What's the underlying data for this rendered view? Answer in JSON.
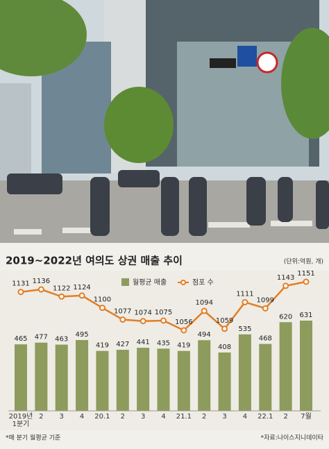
{
  "chart_data": {
    "type": "bar-line",
    "title": "2019~2022년 여의도 상권 매출 추이",
    "unit_note": "(단위:억원, 개)",
    "categories": [
      "2019년 1분기",
      "2",
      "3",
      "4",
      "20.1",
      "2",
      "3",
      "4",
      "21.1",
      "2",
      "3",
      "4",
      "22.1",
      "2",
      "7월"
    ],
    "series": [
      {
        "name": "월평균 매출",
        "color": "#8d9b5c",
        "kind": "bar",
        "values": [
          465,
          477,
          463,
          495,
          419,
          427,
          441,
          435,
          419,
          494,
          408,
          535,
          468,
          620,
          631
        ]
      },
      {
        "name": "점포 수",
        "color": "#e37d25",
        "kind": "line",
        "values": [
          1131,
          1136,
          1122,
          1124,
          1100,
          1077,
          1074,
          1075,
          1056,
          1094,
          1059,
          1111,
          1099,
          1143,
          1151
        ]
      }
    ],
    "footnote": "*매 분기 월평균 기준",
    "source": "*자료:나이스지니데이타"
  }
}
